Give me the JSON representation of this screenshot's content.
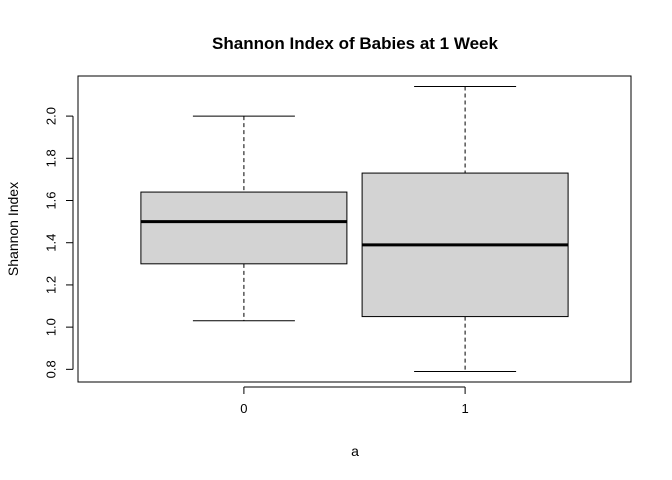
{
  "chart_data": {
    "type": "boxplot",
    "title": "Shannon Index of Babies at 1 Week",
    "xlabel": "a",
    "ylabel": "Shannon Index",
    "categories": [
      "0",
      "1"
    ],
    "boxes": [
      {
        "category": "0",
        "whisker_low": 1.03,
        "q1": 1.3,
        "median": 1.5,
        "q3": 1.64,
        "whisker_high": 2.0
      },
      {
        "category": "1",
        "whisker_low": 0.79,
        "q1": 1.05,
        "median": 1.39,
        "q3": 1.73,
        "whisker_high": 2.14
      }
    ],
    "yticks": [
      "0.8",
      "1.0",
      "1.2",
      "1.4",
      "1.6",
      "1.8",
      "2.0"
    ],
    "ylim": [
      0.74,
      2.19
    ],
    "box_fill": "#d3d3d3",
    "grid": false
  }
}
